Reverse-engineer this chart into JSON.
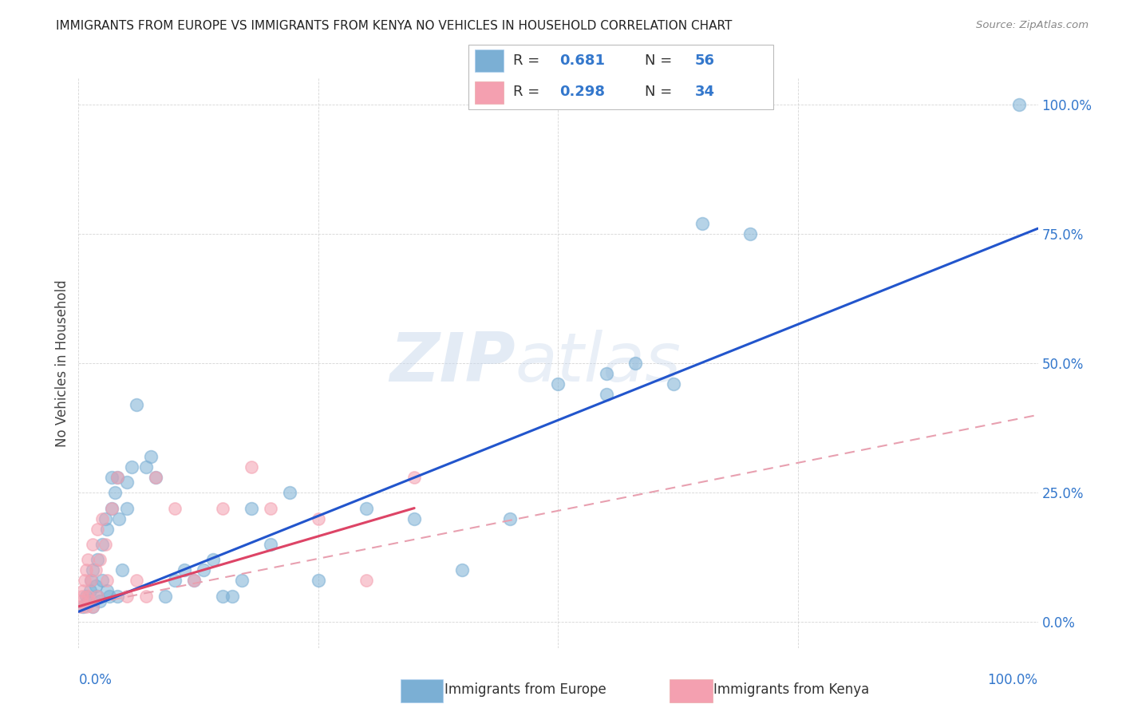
{
  "title": "IMMIGRANTS FROM EUROPE VS IMMIGRANTS FROM KENYA NO VEHICLES IN HOUSEHOLD CORRELATION CHART",
  "source": "Source: ZipAtlas.com",
  "ylabel": "No Vehicles in Household",
  "xlim": [
    0,
    100
  ],
  "ylim": [
    -5,
    105
  ],
  "watermark_zip": "ZIP",
  "watermark_atlas": "atlas",
  "legend1_R": "0.681",
  "legend1_N": "56",
  "legend2_R": "0.298",
  "legend2_N": "34",
  "blue_scatter": "#7BAFD4",
  "pink_scatter": "#F4A0B0",
  "line_blue_solid": "#2255CC",
  "line_pink_solid": "#DD4466",
  "line_pink_dashed": "#E8A0B0",
  "axis_label_color": "#3377CC",
  "legend_label1": "Immigrants from Europe",
  "legend_label2": "Immigrants from Kenya",
  "europe_x": [
    0.5,
    0.8,
    1.0,
    1.2,
    1.3,
    1.5,
    1.5,
    1.8,
    2.0,
    2.0,
    2.2,
    2.5,
    2.5,
    2.8,
    3.0,
    3.0,
    3.2,
    3.5,
    3.5,
    3.8,
    4.0,
    4.0,
    4.2,
    4.5,
    5.0,
    5.0,
    5.5,
    6.0,
    7.0,
    7.5,
    8.0,
    9.0,
    10.0,
    11.0,
    12.0,
    13.0,
    14.0,
    15.0,
    16.0,
    17.0,
    18.0,
    20.0,
    22.0,
    25.0,
    30.0,
    35.0,
    40.0,
    45.0,
    50.0,
    55.0,
    62.0,
    65.0,
    70.0,
    98.0,
    55.0,
    58.0
  ],
  "europe_y": [
    3,
    5,
    4,
    6,
    8,
    3,
    10,
    7,
    5,
    12,
    4,
    8,
    15,
    20,
    6,
    18,
    5,
    22,
    28,
    25,
    5,
    28,
    20,
    10,
    27,
    22,
    30,
    42,
    30,
    32,
    28,
    5,
    8,
    10,
    8,
    10,
    12,
    5,
    5,
    8,
    22,
    15,
    25,
    8,
    22,
    20,
    10,
    20,
    46,
    44,
    46,
    77,
    75,
    100,
    48,
    50
  ],
  "kenya_x": [
    0.2,
    0.3,
    0.4,
    0.5,
    0.6,
    0.8,
    0.8,
    1.0,
    1.0,
    1.2,
    1.3,
    1.5,
    1.5,
    1.8,
    2.0,
    2.0,
    2.2,
    2.5,
    2.8,
    3.0,
    3.5,
    4.0,
    5.0,
    6.0,
    7.0,
    8.0,
    10.0,
    12.0,
    15.0,
    18.0,
    20.0,
    25.0,
    30.0,
    35.0
  ],
  "kenya_y": [
    3,
    4,
    5,
    6,
    8,
    3,
    10,
    5,
    12,
    4,
    8,
    3,
    15,
    10,
    5,
    18,
    12,
    20,
    15,
    8,
    22,
    28,
    5,
    8,
    5,
    28,
    22,
    8,
    22,
    30,
    22,
    20,
    8,
    28
  ],
  "blue_line_x0": 0.0,
  "blue_line_y0": 2.0,
  "blue_line_x1": 100.0,
  "blue_line_y1": 76.0,
  "pink_solid_x0": 0.0,
  "pink_solid_y0": 3.0,
  "pink_solid_x1": 35.0,
  "pink_solid_y1": 22.0,
  "pink_dashed_x0": 0.0,
  "pink_dashed_y0": 3.0,
  "pink_dashed_x1": 100.0,
  "pink_dashed_y1": 40.0
}
